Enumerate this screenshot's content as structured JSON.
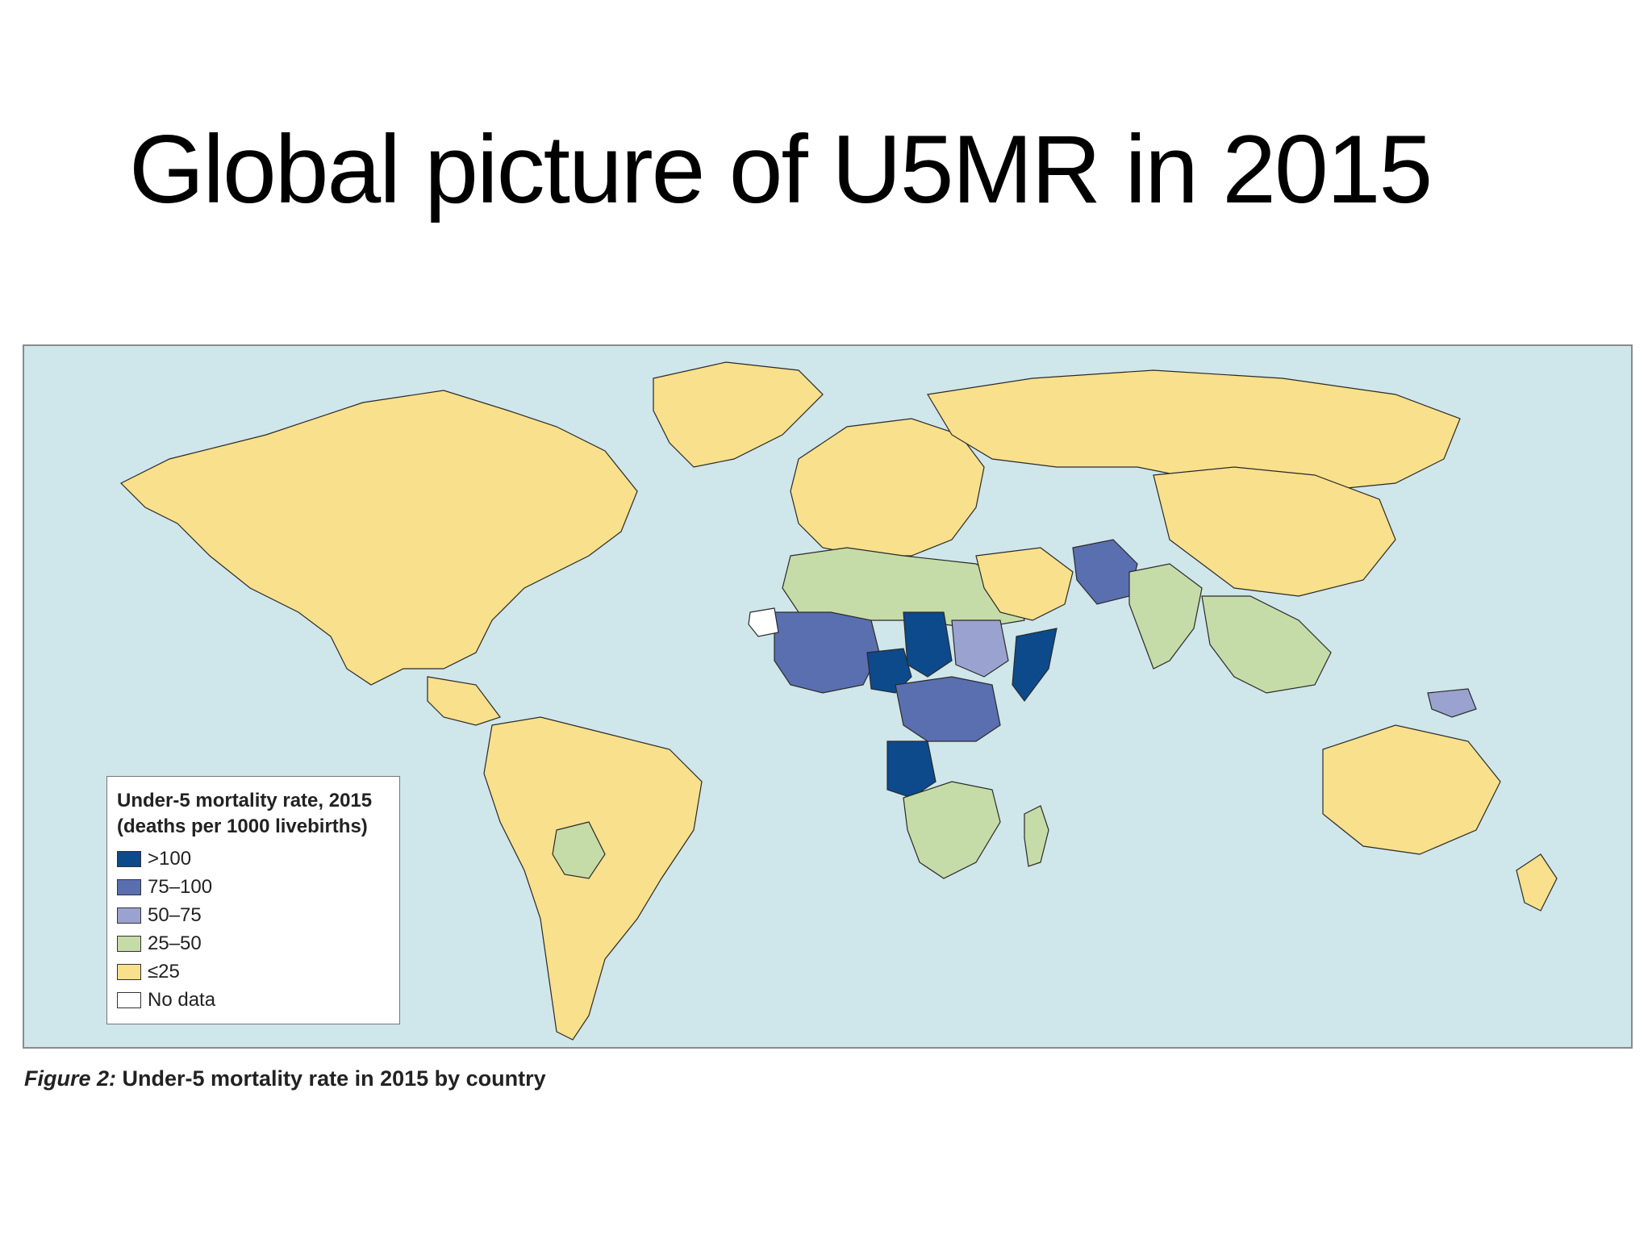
{
  "slide": {
    "title": "Global picture of U5MR in 2015"
  },
  "map": {
    "ocean_color": "#cfe6ea",
    "border_color": "#2a2a2a",
    "category_colors": {
      "gt100": "#0c4a8c",
      "c75_100": "#5a6fb0",
      "c50_75": "#9aa3cf",
      "c25_50": "#c6dca8",
      "le25": "#f8e08c",
      "nodata": "#ffffff"
    },
    "regions": [
      {
        "name": "North America",
        "category": "le25"
      },
      {
        "name": "Greenland",
        "category": "le25"
      },
      {
        "name": "South America",
        "category": "le25"
      },
      {
        "name": "Bolivia",
        "category": "c25_50"
      },
      {
        "name": "Europe",
        "category": "le25"
      },
      {
        "name": "Russia",
        "category": "le25"
      },
      {
        "name": "North Africa",
        "category": "c25_50"
      },
      {
        "name": "West Africa",
        "category": "c75_100"
      },
      {
        "name": "Nigeria",
        "category": "gt100"
      },
      {
        "name": "Chad",
        "category": "gt100"
      },
      {
        "name": "Sudan",
        "category": "c50_75"
      },
      {
        "name": "Somalia",
        "category": "gt100"
      },
      {
        "name": "Central Africa",
        "category": "c75_100"
      },
      {
        "name": "Angola",
        "category": "gt100"
      },
      {
        "name": "Southern Africa",
        "category": "c25_50"
      },
      {
        "name": "Madagascar",
        "category": "c25_50"
      },
      {
        "name": "Middle East",
        "category": "le25"
      },
      {
        "name": "Afghanistan & Pakistan",
        "category": "c75_100"
      },
      {
        "name": "India",
        "category": "c25_50"
      },
      {
        "name": "China",
        "category": "le25"
      },
      {
        "name": "Southeast Asia",
        "category": "c25_50"
      },
      {
        "name": "Papua New Guinea",
        "category": "c50_75"
      },
      {
        "name": "Australia",
        "category": "le25"
      },
      {
        "name": "New Zealand",
        "category": "le25"
      },
      {
        "name": "Western Sahara",
        "category": "nodata"
      }
    ]
  },
  "legend": {
    "title_line1": "Under-5 mortality rate, 2015",
    "title_line2": "(deaths per 1000 livebirths)",
    "items": [
      {
        "key": "gt100",
        "label": ">100"
      },
      {
        "key": "c75_100",
        "label": "75–100"
      },
      {
        "key": "c50_75",
        "label": "50–75"
      },
      {
        "key": "c25_50",
        "label": "25–50"
      },
      {
        "key": "le25",
        "label": "≤25"
      },
      {
        "key": "nodata",
        "label": "No data"
      }
    ]
  },
  "caption": {
    "lead": "Figure 2:",
    "text": " Under-5 mortality rate in 2015 by country"
  }
}
